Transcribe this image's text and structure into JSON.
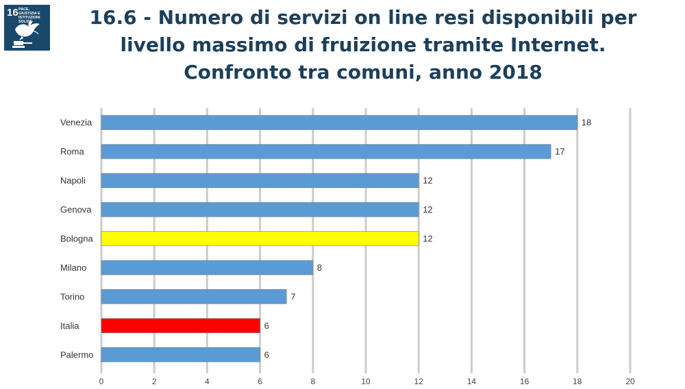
{
  "logo": {
    "number": "16",
    "text": "PACE, GIUSTIZIA E ISTITUZIONI SOLIDE",
    "icon": "dove-gavel-icon",
    "color": "#19486a"
  },
  "chart_data": {
    "type": "bar",
    "orientation": "horizontal",
    "title": "16.6 - Numero di servizi on line resi disponibili per livello massimo di fruizione tramite Internet. Confronto tra comuni, anno 2018",
    "categories": [
      "Venezia",
      "Roma",
      "Napoli",
      "Genova",
      "Bologna",
      "Milano",
      "Torino",
      "Italia",
      "Palermo"
    ],
    "values": [
      18,
      17,
      12,
      12,
      12,
      8,
      7,
      6,
      6
    ],
    "colors": [
      "#5b9bd5",
      "#5b9bd5",
      "#5b9bd5",
      "#5b9bd5",
      "#ffff00",
      "#5b9bd5",
      "#5b9bd5",
      "#ff0000",
      "#5b9bd5"
    ],
    "xlim": [
      0,
      20
    ],
    "xticks": [
      0,
      2,
      4,
      6,
      8,
      10,
      12,
      14,
      16,
      18,
      20
    ],
    "xlabel": "",
    "ylabel": "",
    "grid": "vertical",
    "data_labels": true,
    "legend": "none"
  }
}
